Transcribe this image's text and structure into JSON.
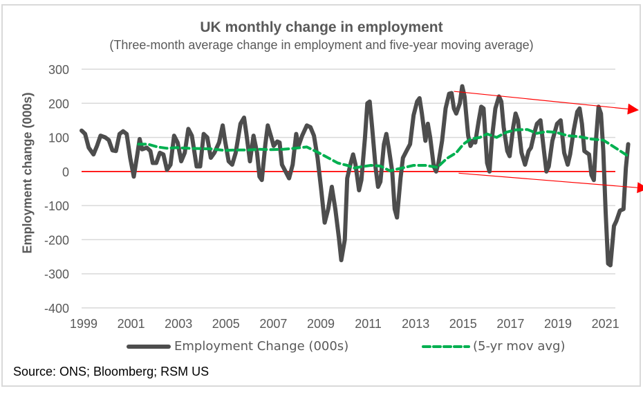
{
  "chart_data": {
    "type": "line",
    "title": "UK monthly change in employment",
    "subtitle": "(Three-month average change in employment and five-year moving average)",
    "xlabel": "",
    "ylabel": "Employment change (000s)",
    "ylim": [
      -400,
      300
    ],
    "yticks": [
      300,
      200,
      100,
      0,
      -100,
      -200,
      -300,
      -400
    ],
    "ytick_labels": [
      "300",
      "200",
      "100",
      "0",
      "-100",
      "-200",
      "-300",
      "-400"
    ],
    "xlim": [
      1999,
      2021.6
    ],
    "xticks": [
      1999,
      2001,
      2003,
      2005,
      2007,
      2009,
      2011,
      2013,
      2015,
      2017,
      2019,
      2021
    ],
    "xtick_labels": [
      "1999",
      "2001",
      "2003",
      "2005",
      "2007",
      "2009",
      "2011",
      "2013",
      "2015",
      "2017",
      "2019",
      "2021"
    ],
    "grid": true,
    "legend_position": "bottom",
    "series": [
      {
        "name": "Employment Change (000s)",
        "color": "#4d4d4d",
        "style": "solid",
        "points": [
          [
            1999.0,
            120
          ],
          [
            1999.15,
            110
          ],
          [
            1999.3,
            70
          ],
          [
            1999.5,
            50
          ],
          [
            1999.65,
            75
          ],
          [
            1999.8,
            105
          ],
          [
            2000.0,
            100
          ],
          [
            2000.15,
            92
          ],
          [
            2000.3,
            62
          ],
          [
            2000.45,
            60
          ],
          [
            2000.6,
            110
          ],
          [
            2000.75,
            118
          ],
          [
            2000.9,
            110
          ],
          [
            2001.05,
            40
          ],
          [
            2001.2,
            -15
          ],
          [
            2001.35,
            50
          ],
          [
            2001.45,
            95
          ],
          [
            2001.55,
            65
          ],
          [
            2001.75,
            70
          ],
          [
            2001.9,
            60
          ],
          [
            2002.0,
            25
          ],
          [
            2002.15,
            25
          ],
          [
            2002.3,
            55
          ],
          [
            2002.45,
            50
          ],
          [
            2002.6,
            5
          ],
          [
            2002.75,
            20
          ],
          [
            2002.9,
            105
          ],
          [
            2003.05,
            85
          ],
          [
            2003.2,
            30
          ],
          [
            2003.35,
            55
          ],
          [
            2003.5,
            125
          ],
          [
            2003.65,
            105
          ],
          [
            2003.85,
            15
          ],
          [
            2004.0,
            15
          ],
          [
            2004.15,
            110
          ],
          [
            2004.3,
            100
          ],
          [
            2004.45,
            40
          ],
          [
            2004.6,
            55
          ],
          [
            2004.8,
            85
          ],
          [
            2004.95,
            135
          ],
          [
            2005.05,
            90
          ],
          [
            2005.2,
            30
          ],
          [
            2005.35,
            20
          ],
          [
            2005.5,
            55
          ],
          [
            2005.7,
            140
          ],
          [
            2005.85,
            158
          ],
          [
            2005.95,
            110
          ],
          [
            2006.1,
            30
          ],
          [
            2006.25,
            105
          ],
          [
            2006.4,
            55
          ],
          [
            2006.5,
            -15
          ],
          [
            2006.6,
            -25
          ],
          [
            2006.75,
            80
          ],
          [
            2006.85,
            135
          ],
          [
            2007.0,
            100
          ],
          [
            2007.1,
            75
          ],
          [
            2007.25,
            88
          ],
          [
            2007.35,
            85
          ],
          [
            2007.45,
            20
          ],
          [
            2007.6,
            0
          ],
          [
            2007.75,
            -20
          ],
          [
            2007.9,
            20
          ],
          [
            2008.05,
            110
          ],
          [
            2008.15,
            75
          ],
          [
            2008.3,
            105
          ],
          [
            2008.5,
            135
          ],
          [
            2008.65,
            130
          ],
          [
            2008.8,
            105
          ],
          [
            2008.95,
            40
          ],
          [
            2009.1,
            -50
          ],
          [
            2009.25,
            -150
          ],
          [
            2009.4,
            -110
          ],
          [
            2009.55,
            -45
          ],
          [
            2009.7,
            -110
          ],
          [
            2009.85,
            -195
          ],
          [
            2009.95,
            -260
          ],
          [
            2010.1,
            -200
          ],
          [
            2010.2,
            -20
          ],
          [
            2010.35,
            25
          ],
          [
            2010.45,
            50
          ],
          [
            2010.55,
            20
          ],
          [
            2010.7,
            -55
          ],
          [
            2010.8,
            -25
          ],
          [
            2010.95,
            100
          ],
          [
            2011.05,
            200
          ],
          [
            2011.15,
            205
          ],
          [
            2011.25,
            130
          ],
          [
            2011.4,
            10
          ],
          [
            2011.5,
            -45
          ],
          [
            2011.6,
            -30
          ],
          [
            2011.75,
            80
          ],
          [
            2011.85,
            110
          ],
          [
            2011.95,
            70
          ],
          [
            2012.1,
            0
          ],
          [
            2012.2,
            -110
          ],
          [
            2012.3,
            -135
          ],
          [
            2012.45,
            -20
          ],
          [
            2012.55,
            40
          ],
          [
            2012.7,
            60
          ],
          [
            2012.85,
            80
          ],
          [
            2013.0,
            165
          ],
          [
            2013.15,
            205
          ],
          [
            2013.25,
            215
          ],
          [
            2013.35,
            170
          ],
          [
            2013.5,
            90
          ],
          [
            2013.6,
            140
          ],
          [
            2013.7,
            100
          ],
          [
            2013.85,
            15
          ],
          [
            2013.95,
            0
          ],
          [
            2014.05,
            25
          ],
          [
            2014.2,
            90
          ],
          [
            2014.35,
            185
          ],
          [
            2014.5,
            228
          ],
          [
            2014.6,
            230
          ],
          [
            2014.7,
            185
          ],
          [
            2014.8,
            170
          ],
          [
            2014.95,
            200
          ],
          [
            2015.05,
            250
          ],
          [
            2015.15,
            220
          ],
          [
            2015.3,
            105
          ],
          [
            2015.4,
            75
          ],
          [
            2015.5,
            90
          ],
          [
            2015.6,
            85
          ],
          [
            2015.75,
            150
          ],
          [
            2015.85,
            190
          ],
          [
            2015.95,
            185
          ],
          [
            2016.1,
            25
          ],
          [
            2016.2,
            0
          ],
          [
            2016.3,
            95
          ],
          [
            2016.45,
            185
          ],
          [
            2016.6,
            220
          ],
          [
            2016.7,
            205
          ],
          [
            2016.8,
            130
          ],
          [
            2016.95,
            60
          ],
          [
            2017.05,
            45
          ],
          [
            2017.2,
            130
          ],
          [
            2017.3,
            170
          ],
          [
            2017.4,
            150
          ],
          [
            2017.55,
            55
          ],
          [
            2017.7,
            20
          ],
          [
            2017.85,
            60
          ],
          [
            2017.95,
            70
          ],
          [
            2018.1,
            115
          ],
          [
            2018.2,
            140
          ],
          [
            2018.35,
            150
          ],
          [
            2018.5,
            60
          ],
          [
            2018.6,
            0
          ],
          [
            2018.7,
            15
          ],
          [
            2018.85,
            90
          ],
          [
            2018.95,
            115
          ],
          [
            2019.05,
            140
          ],
          [
            2019.2,
            150
          ],
          [
            2019.35,
            55
          ],
          [
            2019.5,
            20
          ],
          [
            2019.6,
            50
          ],
          [
            2019.75,
            120
          ],
          [
            2019.9,
            175
          ],
          [
            2020.0,
            185
          ],
          [
            2020.1,
            140
          ],
          [
            2020.2,
            60
          ],
          [
            2020.3,
            55
          ],
          [
            2020.4,
            50
          ],
          [
            2020.5,
            -10
          ],
          [
            2020.6,
            -25
          ],
          [
            2020.7,
            100
          ],
          [
            2020.8,
            190
          ],
          [
            2020.9,
            170
          ],
          [
            2021.0,
            60
          ],
          [
            2021.1,
            -120
          ],
          [
            2021.2,
            -270
          ],
          [
            2021.3,
            -275
          ],
          [
            2021.45,
            -160
          ],
          [
            2021.55,
            -145
          ],
          [
            2021.7,
            -115
          ],
          [
            2021.85,
            -110
          ],
          [
            2021.95,
            10
          ],
          [
            2022.05,
            80
          ]
        ]
      },
      {
        "name": "(5-yr mov avg)",
        "color": "#00b050",
        "style": "dashed",
        "points": [
          [
            2001.4,
            80
          ],
          [
            2001.8,
            80
          ],
          [
            2002.2,
            72
          ],
          [
            2002.6,
            68
          ],
          [
            2003.0,
            70
          ],
          [
            2003.5,
            68
          ],
          [
            2004.0,
            67
          ],
          [
            2004.5,
            66
          ],
          [
            2005.0,
            62
          ],
          [
            2005.5,
            63
          ],
          [
            2006.0,
            63
          ],
          [
            2006.5,
            65
          ],
          [
            2007.0,
            64
          ],
          [
            2007.5,
            65
          ],
          [
            2008.0,
            68
          ],
          [
            2008.5,
            72
          ],
          [
            2009.0,
            55
          ],
          [
            2009.4,
            40
          ],
          [
            2009.8,
            25
          ],
          [
            2010.2,
            18
          ],
          [
            2010.5,
            10
          ],
          [
            2010.8,
            14
          ],
          [
            2011.2,
            18
          ],
          [
            2011.6,
            16
          ],
          [
            2012.0,
            2
          ],
          [
            2012.5,
            10
          ],
          [
            2013.0,
            18
          ],
          [
            2013.5,
            18
          ],
          [
            2014.0,
            12
          ],
          [
            2014.4,
            38
          ],
          [
            2014.8,
            55
          ],
          [
            2015.1,
            80
          ],
          [
            2015.4,
            95
          ],
          [
            2015.8,
            100
          ],
          [
            2016.1,
            110
          ],
          [
            2016.5,
            100
          ],
          [
            2016.9,
            115
          ],
          [
            2017.3,
            122
          ],
          [
            2017.8,
            123
          ],
          [
            2018.2,
            112
          ],
          [
            2018.6,
            117
          ],
          [
            2019.0,
            115
          ],
          [
            2019.5,
            105
          ],
          [
            2020.0,
            102
          ],
          [
            2020.5,
            95
          ],
          [
            2021.0,
            92
          ],
          [
            2021.5,
            70
          ],
          [
            2022.05,
            45
          ]
        ]
      }
    ],
    "annotations": [
      {
        "type": "arrow",
        "color": "#ff0000",
        "description": "Downward-sloping upper trend arrow over 2014-2022 peaks",
        "from": [
          2014.7,
          235
        ],
        "to": [
          2022.5,
          180
        ]
      },
      {
        "type": "arrow",
        "color": "#ff0000",
        "description": "Downward-sloping lower trend arrow over 2014-2022 troughs",
        "from": [
          2014.9,
          -5
        ],
        "to": [
          2022.9,
          -50
        ]
      },
      {
        "type": "hline",
        "value": 0,
        "color": "#ff0000"
      }
    ],
    "source": "Source: ONS; Bloomberg; RSM US"
  }
}
